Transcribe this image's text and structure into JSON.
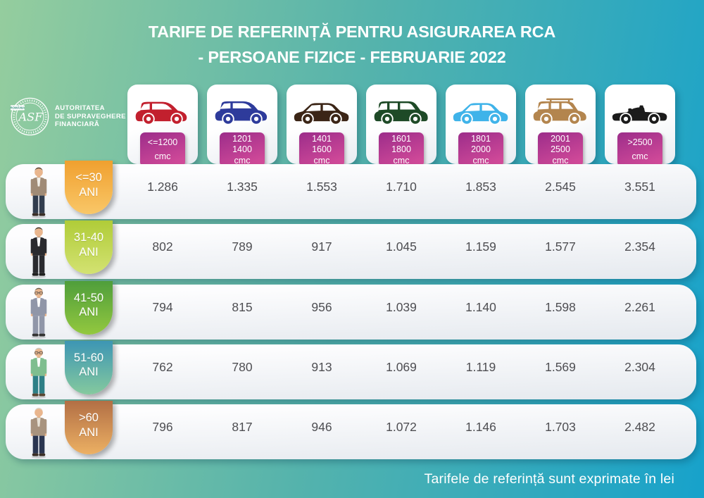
{
  "title": {
    "line1": "TARIFE DE REFERINȚĂ PENTRU ASIGURAREA RCA",
    "line2": "- PERSOANE FIZICE - FEBRUARIE 2022"
  },
  "logo": {
    "seal_country": "ROMÂNIA",
    "seal_initials": "ASF",
    "org_lines": [
      "AUTORITATEA",
      "DE SUPRAVEGHERE",
      "FINANCIARĂ"
    ]
  },
  "vehicles": [
    {
      "name": "city-car-red",
      "type": "hatchback",
      "color": "#c2202e",
      "label_lines": [
        "<=1200",
        "cmc"
      ]
    },
    {
      "name": "compact-suv-blue",
      "type": "suv",
      "color": "#2e3b9b",
      "label_lines": [
        "1201",
        "1400",
        "cmc"
      ]
    },
    {
      "name": "sedan-brown",
      "type": "sedan",
      "color": "#3b2516",
      "label_lines": [
        "1401",
        "1600",
        "cmc"
      ]
    },
    {
      "name": "minivan-green",
      "type": "minivan",
      "color": "#1e4a27",
      "label_lines": [
        "1601",
        "1800",
        "cmc"
      ]
    },
    {
      "name": "sedan-lightblue",
      "type": "sedan",
      "color": "#3fb3e9",
      "label_lines": [
        "1801",
        "2000",
        "cmc"
      ]
    },
    {
      "name": "suv-roofrack-tan",
      "type": "suv-roofrack",
      "color": "#b3854e",
      "label_lines": [
        "2001",
        "2500",
        "cmc"
      ]
    },
    {
      "name": "convertible-black",
      "type": "convertible",
      "color": "#1b1b1b",
      "label_lines": [
        ">2500",
        "cmc"
      ]
    }
  ],
  "age_rows": [
    {
      "label_lines": [
        "<=30",
        "ANI"
      ],
      "badge_gradient": [
        "#f0a02f",
        "#f9c768"
      ],
      "person": {
        "skin": "#e9b68e",
        "hair": "#4a3426",
        "coat": "#a08b76",
        "shirt": "#f2efe8",
        "pants": "#323d4e",
        "shoes": "#3a2e26",
        "glasses": false
      },
      "values": [
        "1.286",
        "1.335",
        "1.553",
        "1.710",
        "1.853",
        "2.545",
        "3.551"
      ]
    },
    {
      "label_lines": [
        "31-40",
        "ANI"
      ],
      "badge_gradient": [
        "#b0cc38",
        "#d3e272"
      ],
      "person": {
        "skin": "#e9b68e",
        "hair": "#33271d",
        "coat": "#2a2a2e",
        "shirt": "#ffffff",
        "pants": "#2a2a2e",
        "shoes": "#1f1f1f",
        "glasses": false
      },
      "values": [
        "802",
        "789",
        "917",
        "1.045",
        "1.159",
        "1.577",
        "2.354"
      ]
    },
    {
      "label_lines": [
        "41-50",
        "ANI"
      ],
      "badge_gradient": [
        "#4f9e3b",
        "#93c83f"
      ],
      "person": {
        "skin": "#e9b68e",
        "hair": "#6b5d4e",
        "coat": "#9096a8",
        "shirt": "#ffffff",
        "pants": "#9096a8",
        "shoes": "#333333",
        "glasses": true
      },
      "values": [
        "794",
        "815",
        "956",
        "1.039",
        "1.140",
        "1.598",
        "2.261"
      ]
    },
    {
      "label_lines": [
        "51-60",
        "ANI"
      ],
      "badge_gradient": [
        "#3d96b4",
        "#85c99e"
      ],
      "person": {
        "skin": "#e9b68e",
        "hair": "#cbc9c2",
        "coat": "#7fbe8f",
        "shirt": "#ffffff",
        "pants": "#2e7f86",
        "shoes": "#5a4632",
        "glasses": true
      },
      "values": [
        "762",
        "780",
        "913",
        "1.069",
        "1.119",
        "1.569",
        "2.304"
      ]
    },
    {
      "label_lines": [
        ">60",
        "ANI"
      ],
      "badge_gradient": [
        "#b26f45",
        "#ecb063"
      ],
      "person": {
        "skin": "#e9b68e",
        "hair": "#dcd9d2",
        "coat": "#a8937e",
        "shirt": "#e8e2d6",
        "pants": "#2a3550",
        "shoes": "#3a2e26",
        "glasses": false
      },
      "values": [
        "796",
        "817",
        "946",
        "1.072",
        "1.146",
        "1.703",
        "2.482"
      ]
    }
  ],
  "footer": {
    "note": "Tarifele de referință sunt exprimate în lei"
  },
  "colors": {
    "bg_left": "#95cd9e",
    "bg_mid": "#55b3ac",
    "bg_right": "#17a2cb",
    "cc_badge_top": "#9c2d8a",
    "cc_badge_bottom": "#d94e9b",
    "value_text": "#4e4e52",
    "title_text": "#ffffff"
  },
  "chart_data": {
    "type": "table",
    "title": "TARIFE DE REFERINȚĂ PENTRU ASIGURAREA RCA - PERSOANE FIZICE - FEBRUARIE 2022",
    "columns": [
      "<=1200 cmc",
      "1201-1400 cmc",
      "1401-1600 cmc",
      "1601-1800 cmc",
      "1801-2000 cmc",
      "2001-2500 cmc",
      ">2500 cmc"
    ],
    "row_labels": [
      "<=30 ANI",
      "31-40 ANI",
      "41-50 ANI",
      "51-60 ANI",
      ">60 ANI"
    ],
    "values": [
      [
        1286,
        1335,
        1553,
        1710,
        1853,
        2545,
        3551
      ],
      [
        802,
        789,
        917,
        1045,
        1159,
        1577,
        2354
      ],
      [
        794,
        815,
        956,
        1039,
        1140,
        1598,
        2261
      ],
      [
        762,
        780,
        913,
        1069,
        1119,
        1569,
        2304
      ],
      [
        796,
        817,
        946,
        1072,
        1146,
        1703,
        2482
      ]
    ],
    "unit": "lei",
    "note": "Tarifele de referință sunt exprimate în lei"
  }
}
